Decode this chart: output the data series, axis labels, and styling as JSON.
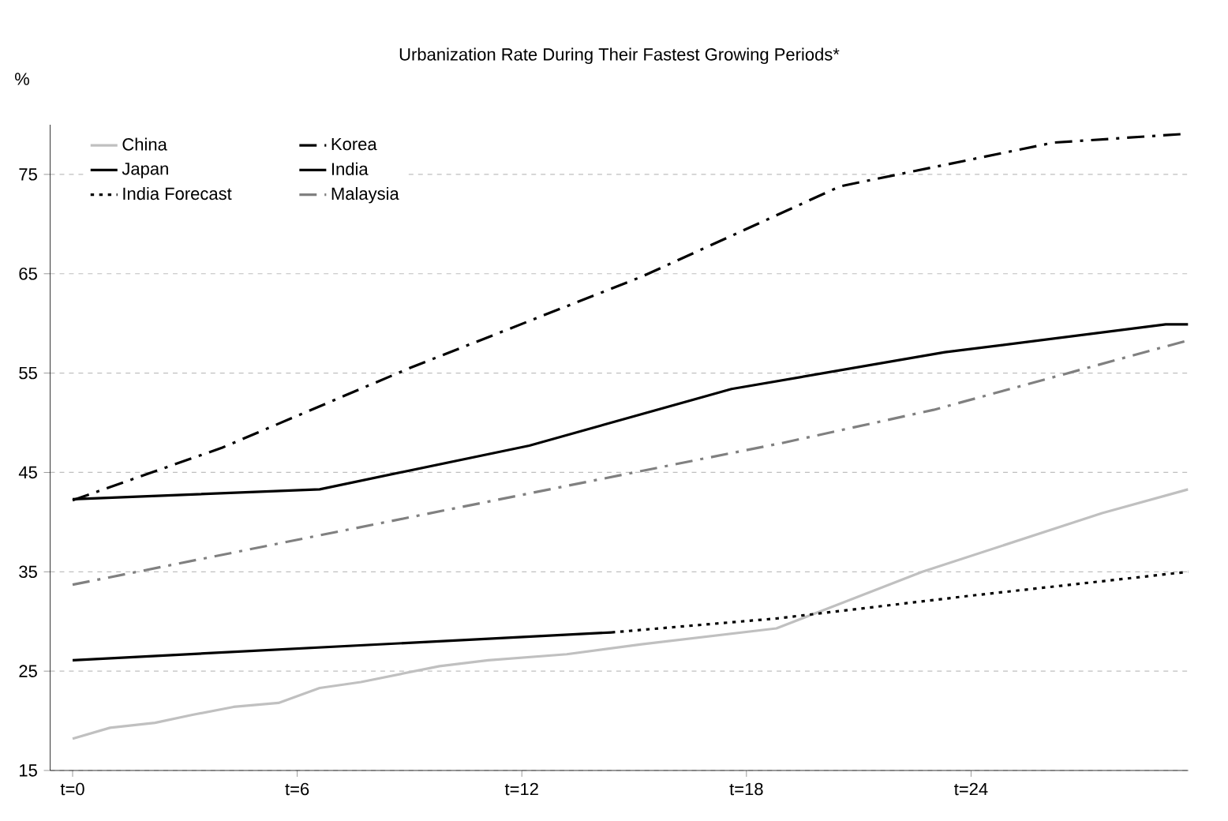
{
  "chart_data": {
    "type": "line",
    "title": "Urbanization Rate During Their Fastest Growing Periods*",
    "ylabel": "%",
    "xlim": [
      -0.6,
      29.8
    ],
    "xticks": [
      {
        "value": 0,
        "label": "t=0"
      },
      {
        "value": 6,
        "label": "t=6"
      },
      {
        "value": 12,
        "label": "t=12"
      },
      {
        "value": 18,
        "label": "t=18"
      },
      {
        "value": 24,
        "label": "t=24"
      }
    ],
    "ylim": [
      15,
      80
    ],
    "yticks": [
      15,
      25,
      35,
      45,
      55,
      65,
      75
    ],
    "grid": "y",
    "legend": "top left",
    "series": [
      {
        "name": "China",
        "color": "#c0c0c0",
        "line_style": "solid",
        "x": [
          0,
          1,
          2.2,
          3.2,
          4.3,
          5.5,
          6.6,
          7.7,
          9.8,
          11.1,
          13.2,
          15.2,
          18.8,
          22.7,
          27.5,
          29.8
        ],
        "values": [
          18.2,
          19.3,
          19.8,
          20.6,
          21.4,
          21.8,
          23.3,
          23.9,
          25.5,
          26.1,
          26.7,
          27.7,
          29.3,
          35,
          40.9,
          43.3
        ]
      },
      {
        "name": "Korea",
        "color": "#000000",
        "line_style": "dashed",
        "x": [
          0,
          4,
          9,
          15.2,
          20.5,
          26.2,
          29.8
        ],
        "values": [
          42.2,
          47.5,
          55.5,
          64.7,
          73.8,
          78.2,
          79.1
        ]
      },
      {
        "name": "Japan",
        "color": "#000000",
        "line_style": "solid",
        "x": [
          0,
          6.6,
          12.2,
          17.6,
          23.3,
          29.2,
          29.8
        ],
        "values": [
          42.3,
          43.3,
          47.7,
          53.4,
          57.1,
          59.9,
          59.9
        ]
      },
      {
        "name": "India",
        "color": "#000000",
        "line_style": "solid",
        "x": [
          0,
          14.4
        ],
        "values": [
          26.1,
          28.9
        ]
      },
      {
        "name": "India Forecast",
        "color": "#000000",
        "line_style": "dotted",
        "x": [
          14.4,
          18.8,
          24,
          29.8
        ],
        "values": [
          28.9,
          30.3,
          32.6,
          35.0
        ]
      },
      {
        "name": "Malaysia",
        "color": "#808080",
        "line_style": "dashed",
        "x": [
          0,
          15,
          19,
          23,
          29.8
        ],
        "values": [
          33.7,
          45,
          48,
          51.3,
          58.3
        ]
      }
    ]
  }
}
